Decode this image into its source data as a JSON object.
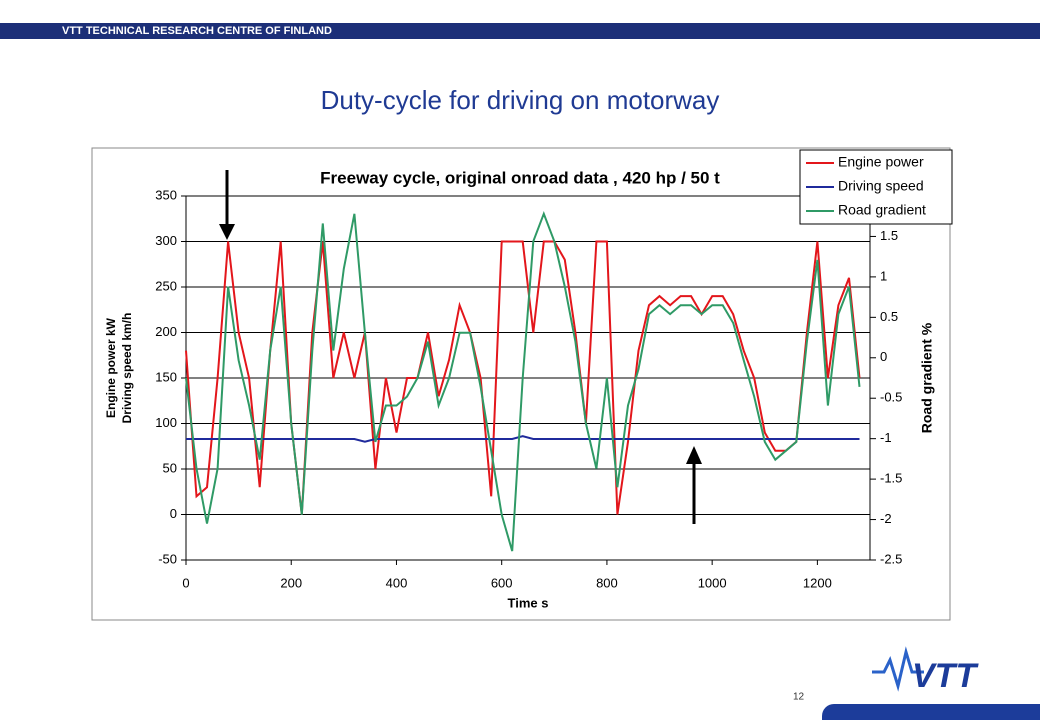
{
  "header": "VTT TECHNICAL RESEARCH CENTRE OF FINLAND",
  "slide_title": "Duty-cycle for driving on motorway",
  "page_number": "12",
  "logo": "VTT",
  "chart_data": {
    "type": "line",
    "title": "Freeway cycle, original onroad data , 420 hp / 50 t",
    "xlabel": "Time s",
    "ylabel": [
      "Engine power kW",
      "Driving speed km/h"
    ],
    "y2label": "Road gradient %",
    "x": [
      0,
      20,
      40,
      60,
      80,
      100,
      120,
      140,
      160,
      180,
      200,
      220,
      240,
      260,
      280,
      300,
      320,
      340,
      360,
      380,
      400,
      420,
      440,
      460,
      480,
      500,
      520,
      540,
      560,
      580,
      600,
      620,
      640,
      660,
      680,
      700,
      720,
      740,
      760,
      780,
      800,
      820,
      840,
      860,
      880,
      900,
      920,
      940,
      960,
      980,
      1000,
      1020,
      1040,
      1060,
      1080,
      1100,
      1120,
      1140,
      1160,
      1180,
      1200,
      1220,
      1240,
      1260,
      1280
    ],
    "series": [
      {
        "name": "Engine power",
        "color": "#e3161b",
        "axis": "y",
        "values": [
          180,
          20,
          30,
          150,
          300,
          200,
          150,
          30,
          180,
          300,
          100,
          0,
          200,
          300,
          150,
          200,
          150,
          200,
          50,
          150,
          90,
          150,
          150,
          200,
          130,
          170,
          230,
          200,
          150,
          20,
          300,
          300,
          300,
          200,
          300,
          300,
          280,
          200,
          100,
          300,
          300,
          0,
          80,
          180,
          230,
          240,
          230,
          240,
          240,
          220,
          240,
          240,
          220,
          180,
          150,
          90,
          70,
          70,
          80,
          200,
          300,
          150,
          230,
          260,
          150
        ]
      },
      {
        "name": "Driving speed",
        "color": "#1f2a9c",
        "axis": "y",
        "values": [
          83,
          83,
          83,
          83,
          83,
          83,
          83,
          83,
          83,
          83,
          83,
          83,
          83,
          83,
          83,
          83,
          83,
          80,
          83,
          83,
          83,
          83,
          83,
          83,
          83,
          83,
          83,
          83,
          83,
          83,
          83,
          83,
          86,
          83,
          83,
          83,
          83,
          83,
          83,
          83,
          83,
          83,
          83,
          83,
          83,
          83,
          83,
          83,
          83,
          83,
          83,
          83,
          83,
          83,
          83,
          83,
          83,
          83,
          83,
          83,
          83,
          83,
          83,
          83,
          83
        ]
      },
      {
        "name": "Road gradient",
        "color": "#2f9a66",
        "axis": "y2",
        "values": [
          -0.25,
          -1.37,
          -2.05,
          -1.37,
          0.88,
          -0.03,
          -0.59,
          -1.26,
          0.09,
          0.88,
          -0.81,
          -1.94,
          0.09,
          1.66,
          0.09,
          1.1,
          1.78,
          0.31,
          -1.04,
          -0.59,
          -0.59,
          -0.48,
          -0.25,
          0.2,
          -0.59,
          -0.25,
          0.31,
          0.31,
          -0.36,
          -1.15,
          -1.94,
          -2.39,
          -0.25,
          1.44,
          1.78,
          1.44,
          0.88,
          0.2,
          -0.81,
          -1.37,
          -0.25,
          -1.6,
          -0.59,
          -0.14,
          0.54,
          0.65,
          0.54,
          0.65,
          0.65,
          0.54,
          0.65,
          0.65,
          0.43,
          -0.03,
          -0.48,
          -1.04,
          -1.26,
          -1.15,
          -1.04,
          0.2,
          1.21,
          -0.59,
          0.54,
          0.88,
          -0.36
        ]
      }
    ],
    "xlim": [
      0,
      1300
    ],
    "xticks": [
      0,
      200,
      400,
      600,
      800,
      1000,
      1200
    ],
    "ylim": [
      -50,
      350
    ],
    "yticks": [
      -50,
      0,
      50,
      100,
      150,
      200,
      250,
      300,
      350
    ],
    "y2lim": [
      -2.5,
      2
    ],
    "y2ticks": [
      -2.5,
      -2,
      -1.5,
      -1,
      -0.5,
      0,
      0.5,
      1,
      1.5
    ],
    "grid": true,
    "legend": "top-right"
  }
}
